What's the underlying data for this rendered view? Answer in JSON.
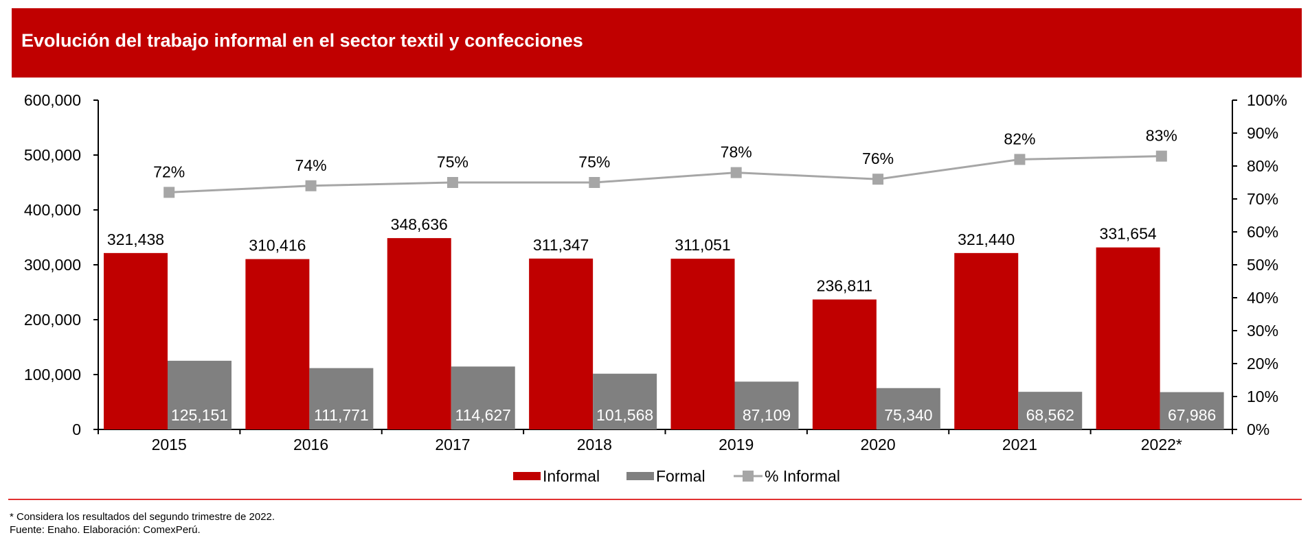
{
  "header": {
    "title": "Evolución del trabajo informal en el sector textil y confecciones"
  },
  "chart_data": {
    "type": "bar+line",
    "title": "Evolución del trabajo informal en el sector textil y confecciones",
    "categories": [
      "2015",
      "2016",
      "2017",
      "2018",
      "2019",
      "2020",
      "2021",
      "2022*"
    ],
    "series": [
      {
        "name": "Informal",
        "type": "bar",
        "axis": "left",
        "color": "#c00000",
        "values": [
          321438,
          310416,
          348636,
          311347,
          311051,
          236811,
          321440,
          331654
        ],
        "labels": [
          "321,438",
          "310,416",
          "348,636",
          "311,347",
          "311,051",
          "236,811",
          "321,440",
          "331,654"
        ]
      },
      {
        "name": "Formal",
        "type": "bar",
        "axis": "left",
        "color": "#808080",
        "values": [
          125151,
          111771,
          114627,
          101568,
          87109,
          75340,
          68562,
          67986
        ],
        "labels": [
          "125,151",
          "111,771",
          "114,627",
          "101,568",
          "87,109",
          "75,340",
          "68,562",
          "67,986"
        ]
      },
      {
        "name": "% Informal",
        "type": "line",
        "axis": "right",
        "color": "#a6a6a6",
        "values": [
          72,
          74,
          75,
          75,
          78,
          76,
          82,
          83
        ],
        "labels": [
          "72%",
          "74%",
          "75%",
          "75%",
          "78%",
          "76%",
          "82%",
          "83%"
        ]
      }
    ],
    "y_left": {
      "range": [
        0,
        600000
      ],
      "ticks": [
        "0",
        "100,000",
        "200,000",
        "300,000",
        "400,000",
        "500,000",
        "600,000"
      ]
    },
    "y_right": {
      "range": [
        0,
        100
      ],
      "ticks": [
        "0%",
        "10%",
        "20%",
        "30%",
        "40%",
        "50%",
        "60%",
        "70%",
        "80%",
        "90%",
        "100%"
      ]
    },
    "grid": false,
    "legend": "bottom"
  },
  "footer": {
    "note": "* Considera los resultados del segundo trimestre de 2022.",
    "source": "Fuente: Enaho. Elaboración: ComexPerú."
  }
}
